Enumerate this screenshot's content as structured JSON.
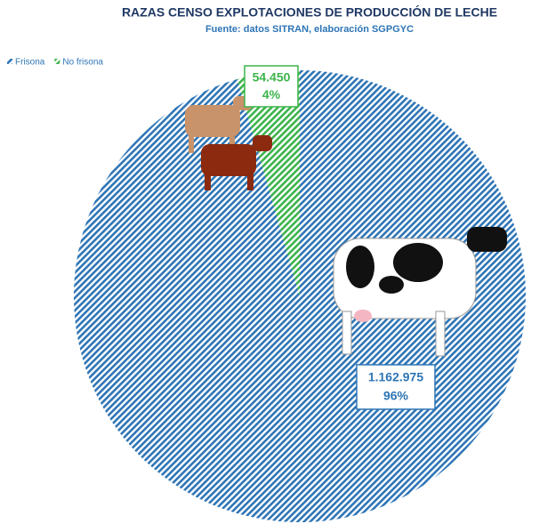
{
  "chart_data": {
    "type": "pie",
    "title": "RAZAS CENSO EXPLOTACIONES DE PRODUCCIÓN DE LECHE",
    "subtitle": "Fuente: datos SITRAN, elaboración SGPGYC",
    "categories": [
      "Frisona",
      "No frisona"
    ],
    "values": [
      1162975,
      54450
    ],
    "value_labels": [
      "1.162.975",
      "54.450"
    ],
    "percent_labels": [
      "96%",
      "4%"
    ],
    "colors": [
      "#2e75b6",
      "#3cb44b"
    ],
    "legend": "top-left"
  }
}
